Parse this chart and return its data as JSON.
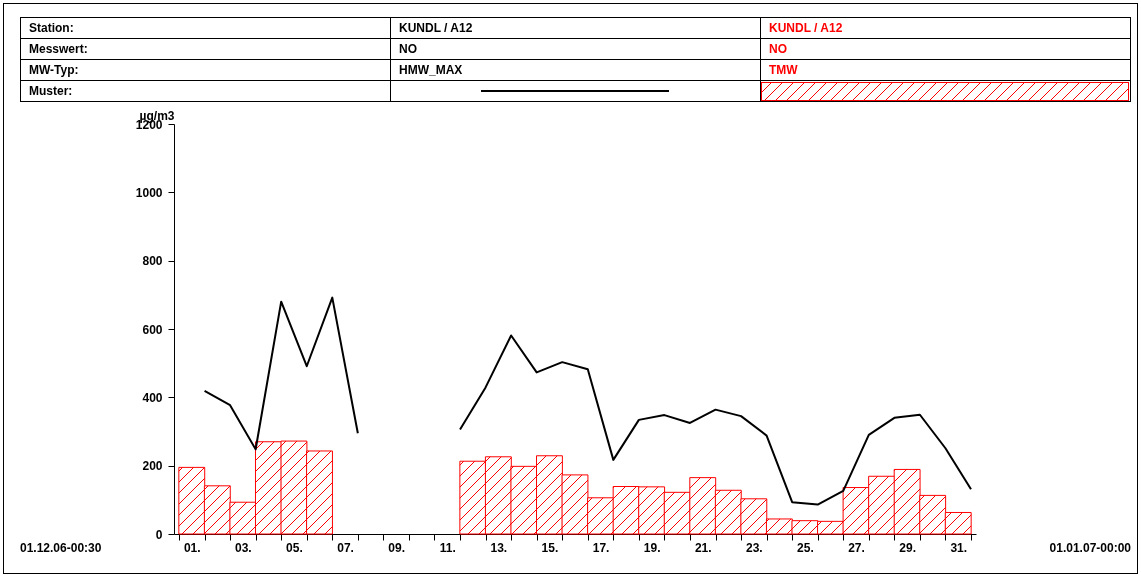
{
  "chart_data": {
    "type": "bar",
    "ylabel": "µg/m3",
    "x": [
      0.5,
      1.5,
      2.5,
      3.5,
      4.5,
      5.5,
      6.5,
      7.5,
      8.5,
      9.5,
      10.5,
      11.5,
      12.5,
      13.5,
      14.5,
      15.5,
      16.5,
      17.5,
      18.5,
      19.5,
      20.5,
      21.5,
      22.5,
      23.5,
      24.5,
      25.5,
      26.5,
      27.5,
      28.5,
      29.5,
      30.5
    ],
    "series": [
      {
        "name": "TMW",
        "color": "#ff0000",
        "values": [
          195,
          141,
          93,
          270,
          272,
          243,
          null,
          null,
          null,
          null,
          null,
          213,
          226,
          198,
          229,
          173,
          106,
          139,
          138,
          122,
          165,
          128,
          103,
          44,
          39,
          37,
          136,
          169,
          189,
          113,
          63
        ]
      },
      {
        "name": "HMW_MAX",
        "type": "line",
        "color": "#000000",
        "x": [
          1,
          2,
          3,
          4,
          5,
          6,
          7,
          null,
          null,
          null,
          11,
          12,
          13,
          14,
          15,
          16,
          17,
          18,
          19,
          20,
          21,
          22,
          23,
          24,
          25,
          26,
          27,
          28,
          29,
          30,
          31
        ],
        "values": [
          419,
          377,
          248,
          680,
          491,
          692,
          295,
          null,
          null,
          null,
          306,
          429,
          581,
          473,
          503,
          482,
          217,
          334,
          348,
          325,
          364,
          345,
          288,
          93,
          86,
          126,
          290,
          340,
          349,
          251,
          131
        ]
      }
    ],
    "xlim": [
      0,
      31
    ],
    "xticks": [
      {
        "value": 0,
        "label": null
      },
      {
        "value": 0.5,
        "label": "01."
      },
      {
        "value": 1,
        "label": null
      },
      {
        "value": 2,
        "label": null
      },
      {
        "value": 2.5,
        "label": "03."
      },
      {
        "value": 3,
        "label": null
      },
      {
        "value": 4,
        "label": null
      },
      {
        "value": 4.5,
        "label": "05."
      },
      {
        "value": 5,
        "label": null
      },
      {
        "value": 6,
        "label": null
      },
      {
        "value": 6.5,
        "label": "07."
      },
      {
        "value": 7,
        "label": null
      },
      {
        "value": 8,
        "label": null
      },
      {
        "value": 8.5,
        "label": "09."
      },
      {
        "value": 9,
        "label": null
      },
      {
        "value": 10,
        "label": null
      },
      {
        "value": 10.5,
        "label": "11."
      },
      {
        "value": 11,
        "label": null
      },
      {
        "value": 12,
        "label": null
      },
      {
        "value": 12.5,
        "label": "13."
      },
      {
        "value": 13,
        "label": null
      },
      {
        "value": 14,
        "label": null
      },
      {
        "value": 14.5,
        "label": "15."
      },
      {
        "value": 15,
        "label": null
      },
      {
        "value": 16,
        "label": null
      },
      {
        "value": 16.5,
        "label": "17."
      },
      {
        "value": 17,
        "label": null
      },
      {
        "value": 18,
        "label": null
      },
      {
        "value": 18.5,
        "label": "19."
      },
      {
        "value": 19,
        "label": null
      },
      {
        "value": 20,
        "label": null
      },
      {
        "value": 20.5,
        "label": "21."
      },
      {
        "value": 21,
        "label": null
      },
      {
        "value": 22,
        "label": null
      },
      {
        "value": 22.5,
        "label": "23."
      },
      {
        "value": 23,
        "label": null
      },
      {
        "value": 24,
        "label": null
      },
      {
        "value": 24.5,
        "label": "25."
      },
      {
        "value": 25,
        "label": null
      },
      {
        "value": 26,
        "label": null
      },
      {
        "value": 26.5,
        "label": "27."
      },
      {
        "value": 27,
        "label": null
      },
      {
        "value": 28,
        "label": null
      },
      {
        "value": 28.5,
        "label": "29."
      },
      {
        "value": 29,
        "label": null
      },
      {
        "value": 30,
        "label": null
      },
      {
        "value": 30.5,
        "label": "31."
      },
      {
        "value": 31,
        "label": null
      }
    ],
    "ylim": [
      0,
      1200
    ],
    "yticks": [
      0,
      200,
      400,
      600,
      800,
      1000,
      1200
    ],
    "grid": false,
    "legend": "top",
    "annotations": [
      "Station:",
      "KUNDL / A12",
      "KUNDL / A12",
      "Messwert:",
      "NO",
      "NO",
      "MW-Typ:",
      "Muster:",
      "01.12.06-00:30",
      "01.01.07-00:00"
    ]
  }
}
